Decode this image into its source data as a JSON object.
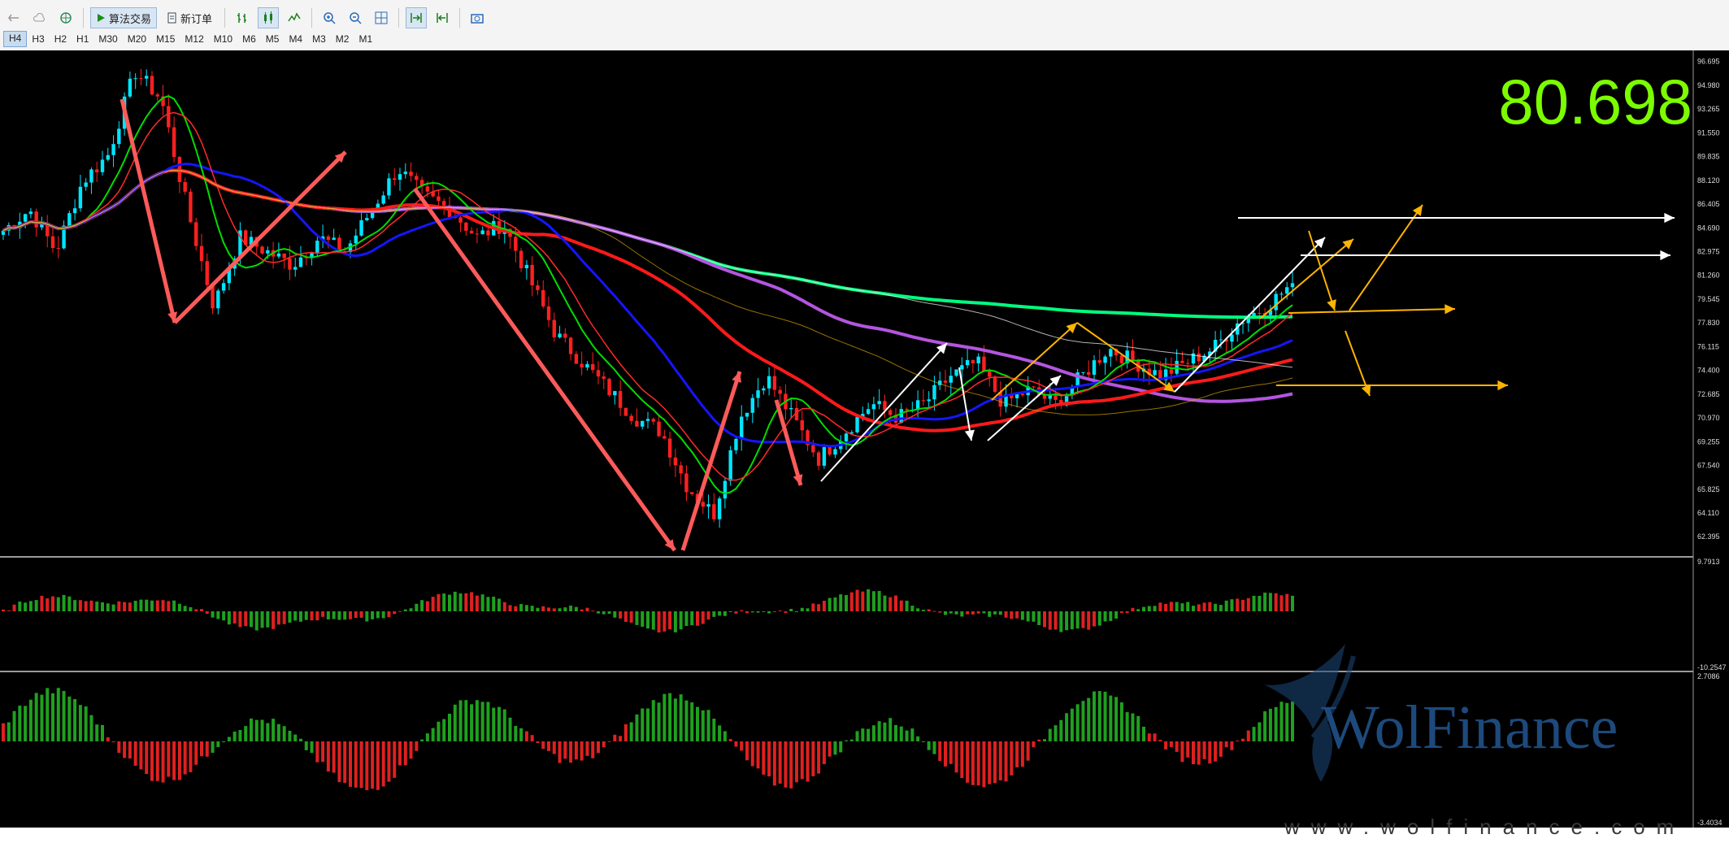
{
  "toolbar": {
    "algo_trading_label": "算法交易",
    "new_order_label": "新订单",
    "timeframes": [
      "H4",
      "H3",
      "H2",
      "H1",
      "M30",
      "M20",
      "M15",
      "M12",
      "M10",
      "M6",
      "M5",
      "M4",
      "M3",
      "M2",
      "M1"
    ],
    "active_timeframe": "H4"
  },
  "chart": {
    "bid_price": "80.698",
    "bid_color": "#7cfc00",
    "background": "#000000",
    "bull_candle_color": "#00e5ff",
    "bear_candle_color": "#ff2020",
    "price_axis_labels": [
      "96.695",
      "94.980",
      "93.265",
      "91.550",
      "89.835",
      "88.120",
      "86.405",
      "84.690",
      "82.975",
      "81.260",
      "79.545",
      "77.830",
      "76.115",
      "74.400",
      "72.685",
      "70.970",
      "69.255",
      "67.540",
      "65.825",
      "64.110",
      "62.395"
    ],
    "macd_axis_labels": [
      "9.7913",
      "-10.2547"
    ],
    "osc_axis_labels": [
      "2.7086",
      "-3.4034"
    ]
  },
  "chart_data": {
    "type": "candlestick",
    "instrument_price_now": 80.698,
    "price_range": [
      61.0,
      97.5
    ],
    "approx_close_path": [
      84.5,
      86,
      83,
      88,
      90,
      96,
      94,
      86,
      79,
      84,
      83,
      82,
      84,
      83,
      86,
      89,
      87,
      86,
      84,
      85,
      81,
      77,
      75,
      73,
      71,
      70,
      66,
      64,
      71,
      74,
      71,
      68,
      70,
      72,
      71,
      72,
      74,
      75,
      72,
      73,
      72,
      74,
      76,
      75,
      74,
      75,
      76,
      78,
      79,
      80.7
    ],
    "moving_average_colors": [
      "#00ff7f",
      "#b455e0",
      "#ff1a1a",
      "#1515ff",
      "#00dd00",
      "#ff2a2a",
      "#ffffff",
      "#d8a400"
    ],
    "annotation_arrow_colors": [
      "#ff5a5a",
      "#ffffff",
      "#ffb400"
    ],
    "projection_levels": [
      85.8,
      83.2,
      78.3,
      72.9
    ]
  },
  "watermark": {
    "name": "WolFinance",
    "url": "www.wolfinance.com",
    "color": "#1d4a7d"
  }
}
